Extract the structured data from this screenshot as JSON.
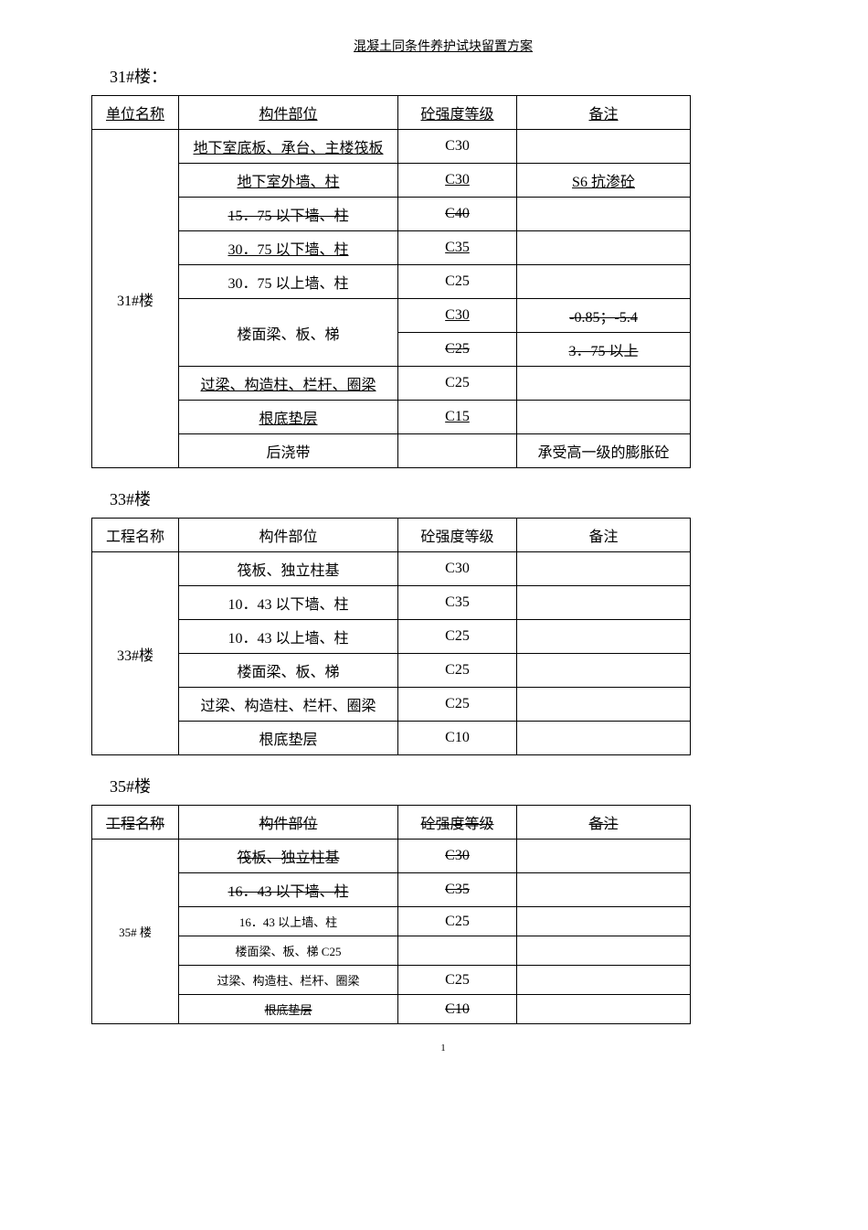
{
  "header": "混凝土同条件养护试块留置方案",
  "pageNum": "1",
  "sections": [
    {
      "title": "31#楼：",
      "headers": [
        "单位名称",
        "构件部位",
        "砼强度等级",
        "备注"
      ],
      "headerClass": "underline-cell",
      "nameCell": "31#楼",
      "nameRowspan": 10,
      "rows": [
        {
          "component": "地下室底板、承台、主楼筏板",
          "grade": "C30",
          "remark": "",
          "cClass": "underline-cell"
        },
        {
          "component": "地下室外墙、柱",
          "grade": "C30",
          "remark": "S6 抗渗砼",
          "cClass": "underline-cell",
          "gClass": "underline-cell",
          "rClass": "underline-cell"
        },
        {
          "component": "15．75 以下墙、柱",
          "grade": "C40",
          "remark": "",
          "cClass": "strike",
          "gClass": "strike"
        },
        {
          "component": "30．75 以下墙、柱",
          "grade": "C35",
          "remark": "",
          "cClass": "underline-cell",
          "gClass": "underline-cell"
        },
        {
          "component": "30．75 以上墙、柱",
          "grade": "C25",
          "remark": ""
        },
        {
          "component": "楼面梁、板、梯",
          "grade": "C30",
          "remark": "-0.85；-5.4",
          "compRowspan": 2,
          "gClass": "underline-cell",
          "rClass": "strike"
        },
        {
          "grade": "C25",
          "remark": "3．75 以上",
          "gClass": "strike",
          "rClass": "strike"
        },
        {
          "component": "过梁、构造柱、栏杆、圈梁",
          "grade": "C25",
          "remark": "",
          "cClass": "underline-cell"
        },
        {
          "component": "根底垫层",
          "grade": "C15",
          "remark": "",
          "cClass": "underline-cell",
          "gClass": "underline-cell"
        },
        {
          "component": "后浇带",
          "grade": "",
          "remark": "承受高一级的膨胀砼"
        }
      ]
    },
    {
      "title": "33#楼",
      "headers": [
        "工程名称",
        "构件部位",
        "砼强度等级",
        "备注"
      ],
      "nameCell": "33#楼",
      "nameRowspan": 6,
      "rows": [
        {
          "component": "筏板、独立柱基",
          "grade": "C30",
          "remark": ""
        },
        {
          "component": "10．43 以下墙、柱",
          "grade": "C35",
          "remark": ""
        },
        {
          "component": "10．43 以上墙、柱",
          "grade": "C25",
          "remark": ""
        },
        {
          "component": "楼面梁、板、梯",
          "grade": "C25",
          "remark": ""
        },
        {
          "component": "过梁、构造柱、栏杆、圈梁",
          "grade": "C25",
          "remark": ""
        },
        {
          "component": "根底垫层",
          "grade": "C10",
          "remark": ""
        }
      ]
    },
    {
      "title": "35#楼",
      "headers": [
        "工程名称",
        "构件部位",
        "砼强度等级",
        "备注"
      ],
      "headerClass": "strike",
      "nameCell": "35# 楼",
      "nameRowspan": 6,
      "nameCellClass": "small-font",
      "rows": [
        {
          "component": "筏板、独立柱基",
          "grade": "C30",
          "remark": "",
          "cClass": "strike",
          "gClass": "strike"
        },
        {
          "component": "16．43 以下墙、柱",
          "grade": "C35",
          "remark": "",
          "cClass": "strike",
          "gClass": "strike"
        },
        {
          "component": "16．43 以上墙、柱",
          "grade": "C25",
          "remark": "",
          "cClass": "small-font"
        },
        {
          "component": "楼面梁、板、梯 C25",
          "grade": "",
          "remark": "",
          "cClass": "small-font"
        },
        {
          "component": "过梁、构造柱、栏杆、圈梁",
          "grade": "C25",
          "remark": "",
          "cClass": "small-font"
        },
        {
          "component": "根底垫层",
          "grade": "C10",
          "remark": "",
          "cClass": "small-font strike",
          "gClass": "strike"
        }
      ]
    }
  ]
}
